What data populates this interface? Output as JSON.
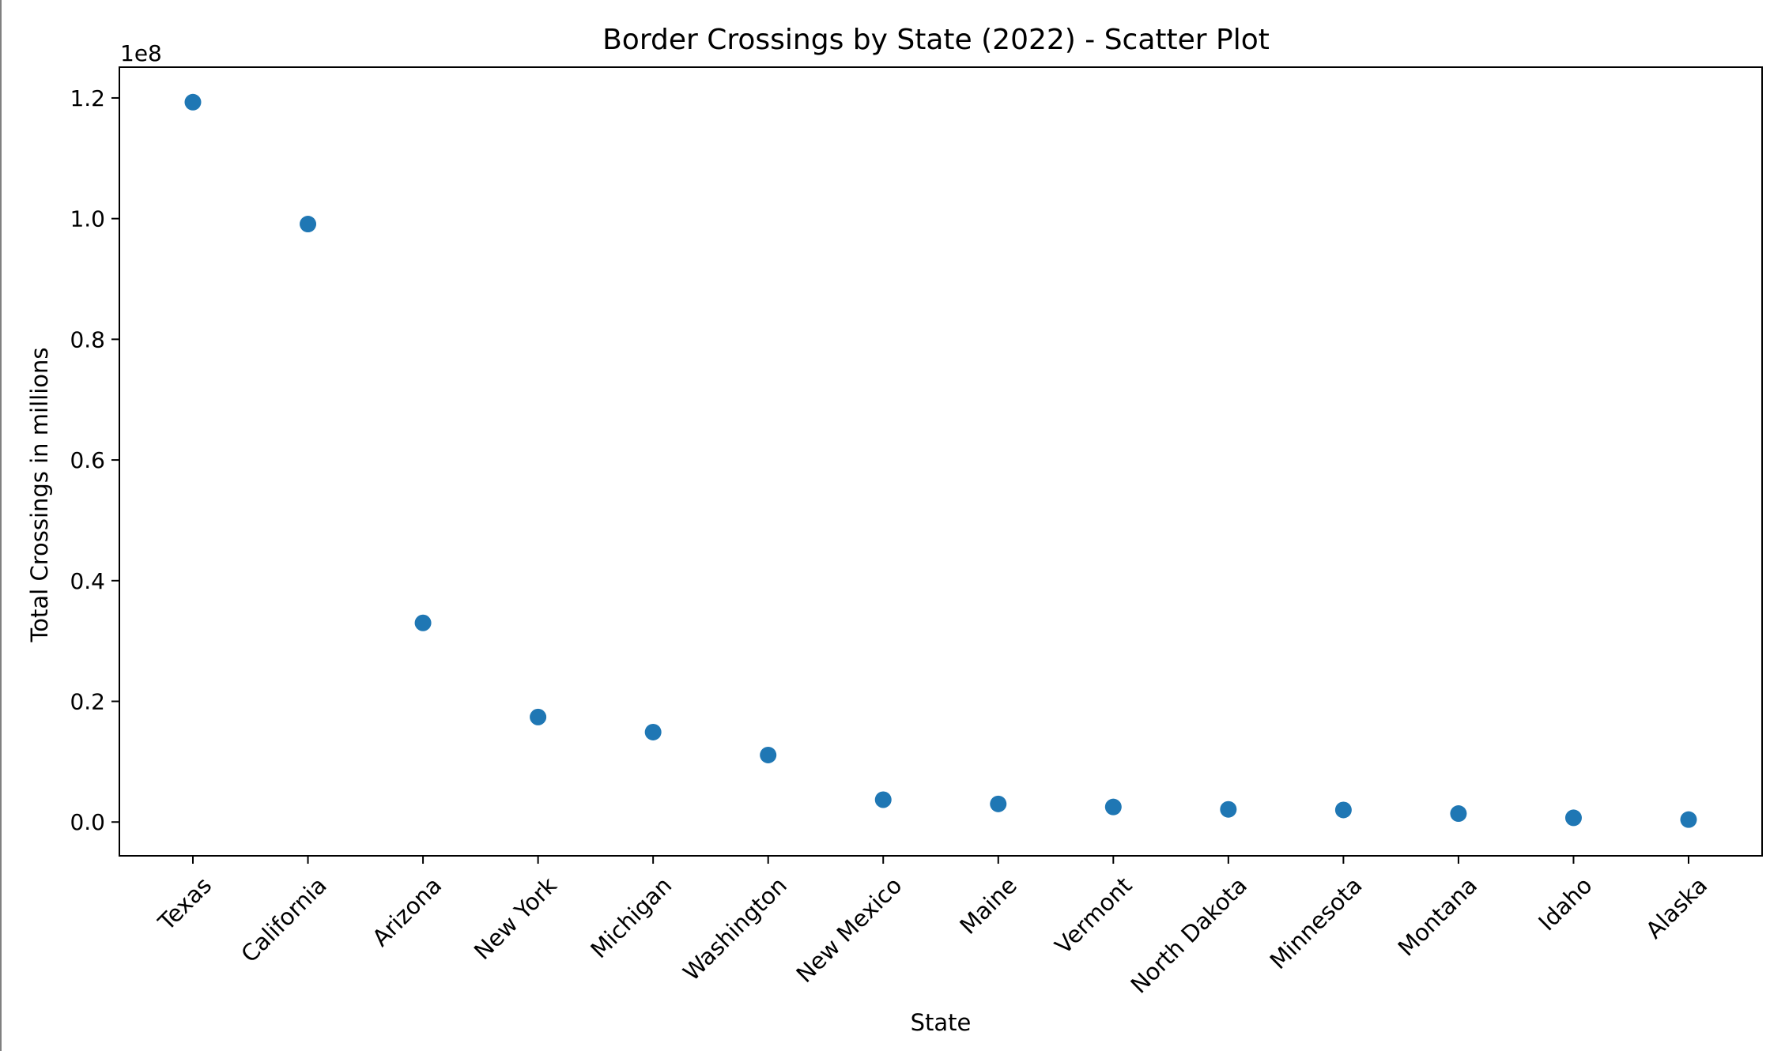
{
  "chart_data": {
    "type": "scatter",
    "title": "Border Crossings by State (2022) - Scatter Plot",
    "xlabel": "State",
    "ylabel": "Total Crossings in millions",
    "y_offset_label": "1e8",
    "categories": [
      "Texas",
      "California",
      "Arizona",
      "New York",
      "Michigan",
      "Washington",
      "New Mexico",
      "Maine",
      "Vermont",
      "North Dakota",
      "Minnesota",
      "Montana",
      "Idaho",
      "Alaska"
    ],
    "values": [
      119300000,
      99100000,
      33000000,
      17400000,
      14900000,
      11100000,
      3700000,
      3000000,
      2500000,
      2100000,
      2000000,
      1400000,
      700000,
      400000
    ],
    "y_ticks": [
      0.0,
      0.2,
      0.4,
      0.6,
      0.8,
      1.0,
      1.2
    ],
    "y_tick_labels": [
      "0.0",
      "0.2",
      "0.4",
      "0.6",
      "0.8",
      "1.0",
      "1.2"
    ],
    "y_tick_scale": 100000000,
    "ylim": [
      -5600000,
      125100000
    ],
    "grid": false,
    "legend": "none",
    "marker_color": "#1f77b4"
  }
}
